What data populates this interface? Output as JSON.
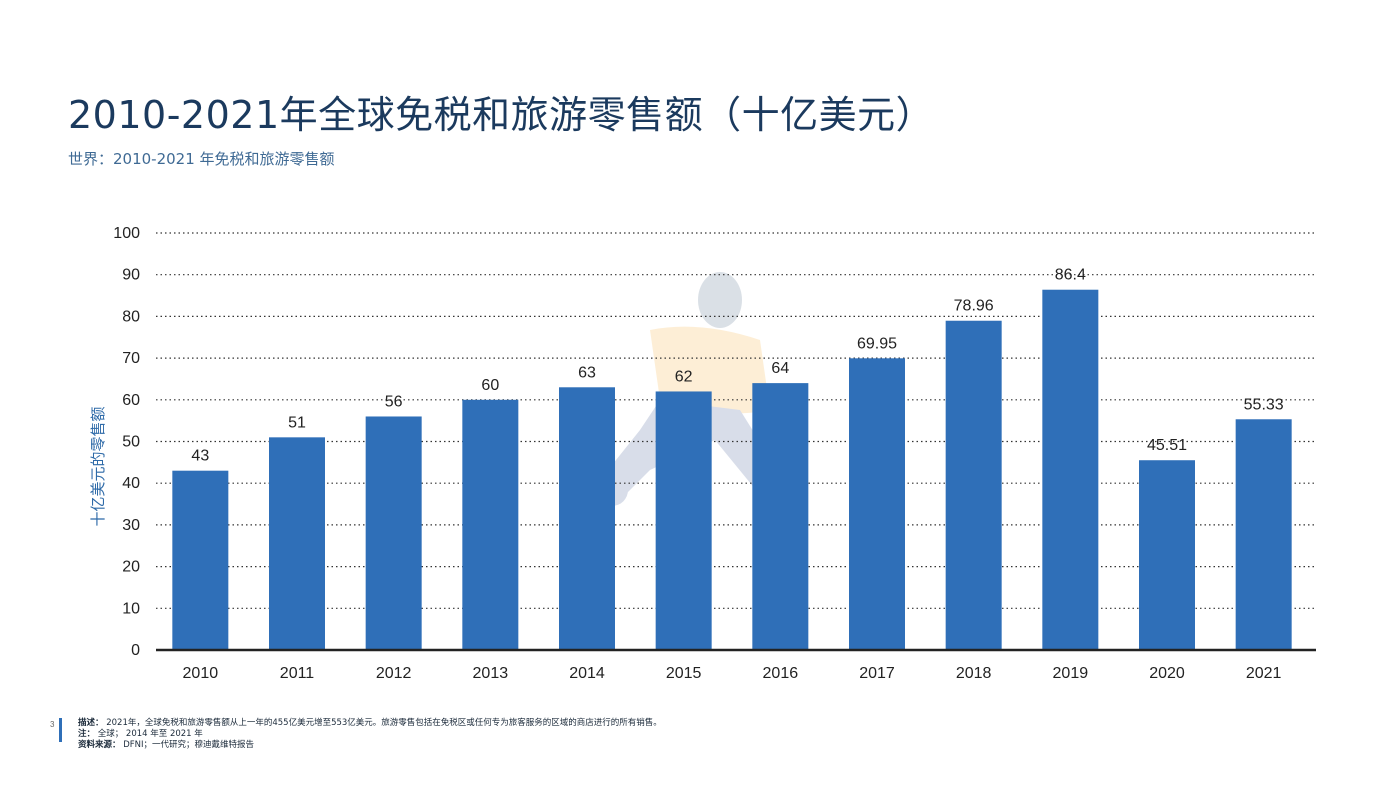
{
  "header": {
    "title": "2010-2021年全球免税和旅游零售额（十亿美元）",
    "subtitle": "世界：2010-2021 年免税和旅游零售额"
  },
  "chart_data": {
    "type": "bar",
    "categories": [
      "2010",
      "2011",
      "2012",
      "2013",
      "2014",
      "2015",
      "2016",
      "2017",
      "2018",
      "2019",
      "2020",
      "2021"
    ],
    "values": [
      43,
      51,
      56,
      60,
      63,
      62,
      64,
      69.95,
      78.96,
      86.4,
      45.51,
      55.33
    ],
    "value_labels": [
      "43",
      "51",
      "56",
      "60",
      "63",
      "62",
      "64",
      "69.95",
      "78.96",
      "86.4",
      "45.51",
      "55.33"
    ],
    "ylabel": "十亿美元的零售额",
    "xlabel": "",
    "ylim": [
      0,
      100
    ],
    "yticks": [
      0,
      10,
      20,
      30,
      40,
      50,
      60,
      70,
      80,
      90,
      100
    ],
    "grid": "horizontal dotted",
    "bar_color": "#2f6fb8"
  },
  "footer": {
    "page_number": "3",
    "description_label": "描述：",
    "description_text": "2021年，全球免税和旅游零售额从上一年的455亿美元增至553亿美元。旅游零售包括在免税区或任何专为旅客服务的区域的商店进行的所有销售。",
    "note_label": "注：",
    "note_text": "全球； 2014 年至 2021 年",
    "source_label": "资料来源：",
    "source_text": "DFNI；一代研究；穆迪戴维特报告"
  }
}
